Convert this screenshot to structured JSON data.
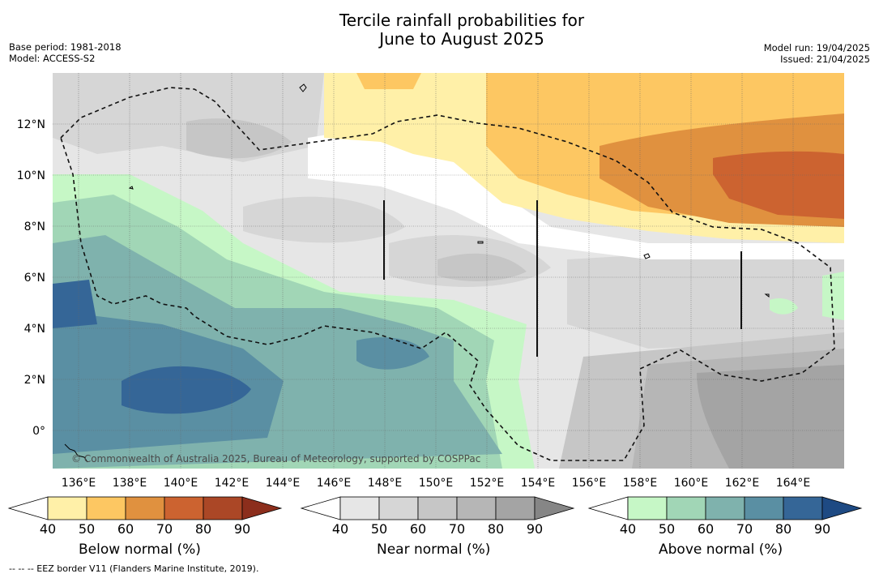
{
  "title_line1": "Tercile rainfall probabilities for",
  "title_line2": "June to August 2025",
  "base_period": "Base period: 1981-2018",
  "model": "Model: ACCESS-S2",
  "model_run": "Model run: 19/04/2025",
  "issued": "Issued: 21/04/2025",
  "copyright": "© Commonwealth of Australia 2025, Bureau of Meteorology, supported by COSPPac",
  "lon_labels": [
    "136°E",
    "138°E",
    "140°E",
    "142°E",
    "144°E",
    "146°E",
    "148°E",
    "150°E",
    "152°E",
    "154°E",
    "156°E",
    "158°E",
    "160°E",
    "162°E",
    "164°E"
  ],
  "lat_labels": [
    "12°N",
    "10°N",
    "8°N",
    "6°N",
    "4°N",
    "2°N",
    "0°"
  ],
  "colorbars": [
    {
      "label": "Below normal (%)",
      "ticks": [
        "40",
        "50",
        "60",
        "70",
        "80",
        "90"
      ],
      "colors": [
        "#fff0a8",
        "#fdc762",
        "#e0913f",
        "#cc6330",
        "#ab4726"
      ],
      "extend": "#8c2e1c"
    },
    {
      "label": "Near normal (%)",
      "ticks": [
        "40",
        "50",
        "60",
        "70",
        "80",
        "90"
      ],
      "colors": [
        "#e6e6e6",
        "#d6d6d6",
        "#c6c6c6",
        "#b6b6b6",
        "#a4a4a4"
      ],
      "extend": "#868686"
    },
    {
      "label": "Above normal (%)",
      "ticks": [
        "40",
        "50",
        "60",
        "70",
        "80",
        "90"
      ],
      "colors": [
        "#c6f7c6",
        "#a1d6b6",
        "#7fb2ad",
        "#5a8fa3",
        "#356697"
      ],
      "extend": "#1e4a83"
    }
  ],
  "footnote": "--  --  -- EEZ border V11 (Flanders Marine Institute, 2019)."
}
